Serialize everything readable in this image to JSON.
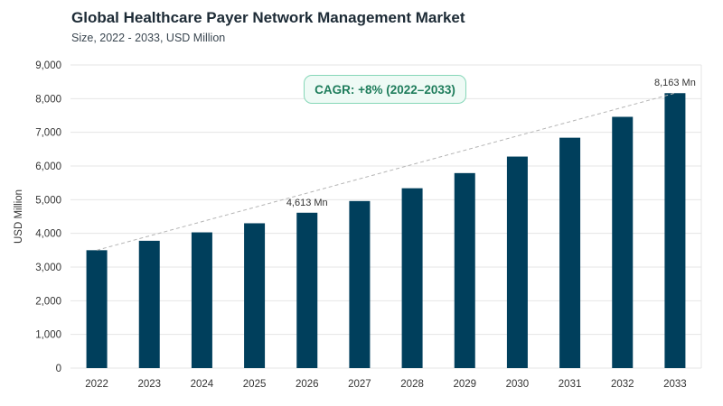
{
  "header": {
    "title": "Global Healthcare Payer Network Management Market",
    "subtitle": "Size, 2022 - 2033, USD Million"
  },
  "annotation": {
    "cagr": "CAGR: +8% (2022–2033)"
  },
  "colors": {
    "bar": "#003f5c",
    "grid": "#e4e4e4",
    "trend": "#b5b5b5",
    "cagr_border": "#86d7b8",
    "cagr_bg": "#eefaf5",
    "cagr_text": "#1f7d5c"
  },
  "chart_data": {
    "type": "bar",
    "title": "Global Healthcare Payer Network Management Market",
    "subtitle": "Size, 2022 - 2033, USD Million",
    "xlabel": "",
    "ylabel": "USD Million",
    "categories": [
      "2022",
      "2023",
      "2024",
      "2025",
      "2026",
      "2027",
      "2028",
      "2029",
      "2030",
      "2031",
      "2032",
      "2033"
    ],
    "values": [
      3500,
      3780,
      4030,
      4300,
      4613,
      4960,
      5340,
      5790,
      6280,
      6840,
      7460,
      8163
    ],
    "ylim": [
      0,
      9000
    ],
    "yticks": [
      0,
      1000,
      2000,
      3000,
      4000,
      5000,
      6000,
      7000,
      8000,
      9000
    ],
    "ytick_labels": [
      "0",
      "1,000",
      "2,000",
      "3,000",
      "4,000",
      "5,000",
      "6,000",
      "7,000",
      "8,000",
      "9,000"
    ],
    "data_labels": [
      {
        "category": "2026",
        "text": "4,613 Mn"
      },
      {
        "category": "2033",
        "text": "8,163 Mn"
      }
    ],
    "trendline": {
      "style": "dashed",
      "from": "2022",
      "to": "2033"
    },
    "grid": true,
    "legend": false
  }
}
